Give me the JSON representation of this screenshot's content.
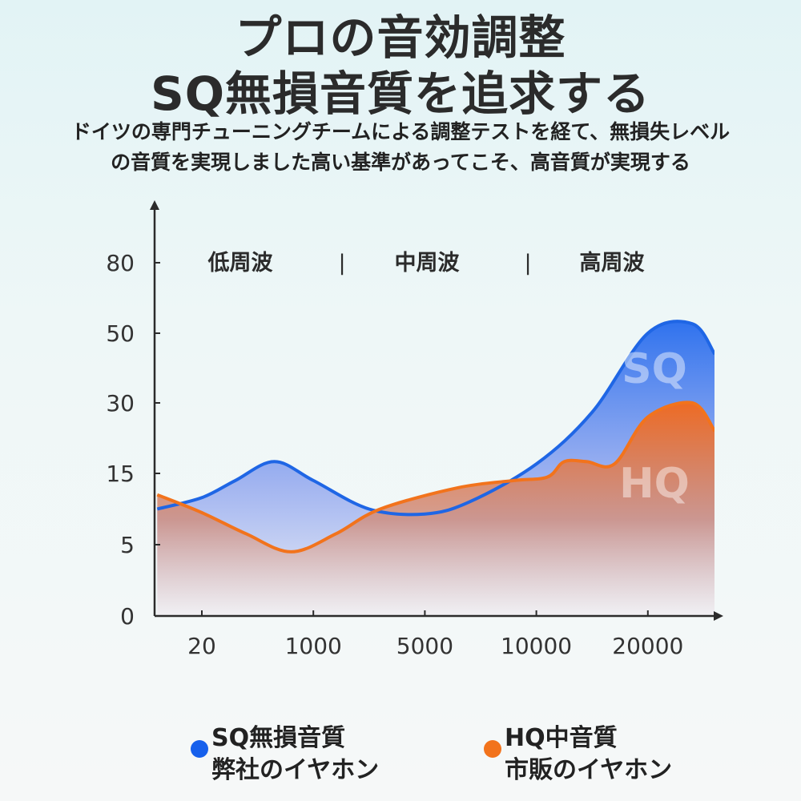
{
  "title": {
    "line1": "プロの音効調整",
    "line2": "SQ無損音質を追求する"
  },
  "subtitle": {
    "line1": "ドイツの専門チューニングチームによる調整テストを経て、無損失レベル",
    "line2": "の音質を実現しました高い基準があってこそ、高音質が実現する"
  },
  "chart_data": {
    "type": "area",
    "y_ticks": [
      "0",
      "5",
      "15",
      "30",
      "50",
      "80"
    ],
    "x_ticks": [
      "20",
      "1000",
      "5000",
      "10000",
      "20000"
    ],
    "bands": [
      "低周波",
      "中周波",
      "高周波"
    ],
    "band_separator": "|",
    "series": [
      {
        "label": "SQ",
        "color": "#1f66e5",
        "x": [
          -0.4,
          0,
          0.3,
          0.65,
          1,
          1.5,
          2,
          2.4,
          3,
          3.5,
          4,
          4.4,
          4.6
        ],
        "values": [
          10,
          11.6,
          14,
          17.5,
          14,
          10,
          9.3,
          11,
          17,
          28,
          50,
          54,
          44
        ]
      },
      {
        "label": "HQ",
        "color": "#f2731c",
        "x": [
          -0.4,
          0,
          0.4,
          0.8,
          1.2,
          1.6,
          2.3,
          2.8,
          3.1,
          3.25,
          3.45,
          3.7,
          4,
          4.4,
          4.6
        ],
        "values": [
          12,
          9.5,
          6.5,
          4.5,
          6.5,
          10,
          13,
          14,
          14.5,
          17.5,
          17.5,
          17,
          27,
          30,
          24
        ]
      }
    ]
  },
  "legend": [
    {
      "color": "#1660ec",
      "line1": "SQ無損音質",
      "line2": "弊社のイヤホン"
    },
    {
      "color": "#f2731c",
      "line1": "HQ中音質",
      "line2": "市販のイヤホン"
    }
  ]
}
